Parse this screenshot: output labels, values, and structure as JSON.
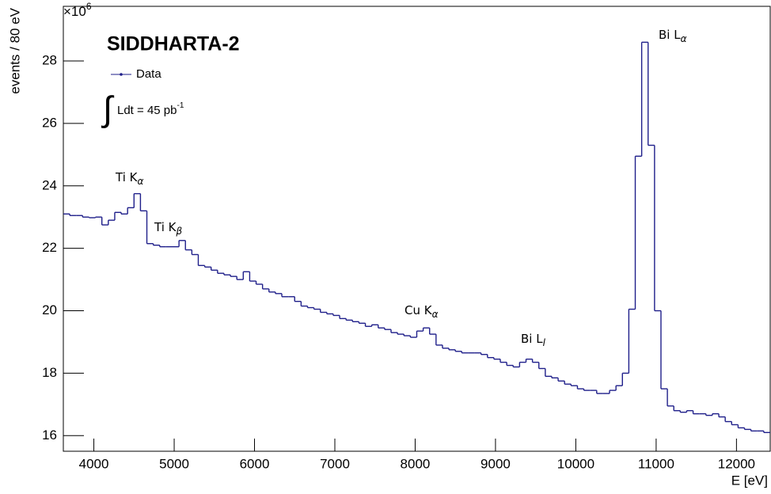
{
  "chart_data": {
    "type": "histogram",
    "title": "SIDDHARTA-2",
    "xlabel": "E [eV]",
    "ylabel": "events / 80 eV",
    "y_multiplier": {
      "text": "×10",
      "sup": "6"
    },
    "legend": {
      "entry": "Data",
      "corner": "top-left"
    },
    "luminosity": {
      "sign": "∫",
      "text": "Ldt = 45 pb",
      "sup": "-1"
    },
    "annotations": [
      {
        "text": "Ti K",
        "sub": "α"
      },
      {
        "text": "Ti K",
        "sub": "β"
      },
      {
        "text": "Cu K",
        "sub": "α"
      },
      {
        "text": "Bi L",
        "sub": "l"
      },
      {
        "text": "Bi L",
        "sub": "α"
      }
    ],
    "color": "#1f1f8a",
    "xlim": [
      3620,
      12420
    ],
    "ylim": [
      15.5,
      29.75
    ],
    "xticks": [
      4000,
      5000,
      6000,
      7000,
      8000,
      9000,
      10000,
      11000,
      12000
    ],
    "yticks": [
      16,
      18,
      20,
      22,
      24,
      26,
      28
    ],
    "bins": [
      3620,
      3700,
      3780,
      3860,
      3940,
      4020,
      4100,
      4180,
      4260,
      4340,
      4420,
      4500,
      4580,
      4660,
      4740,
      4820,
      4900,
      4980,
      5060,
      5140,
      5220,
      5300,
      5380,
      5460,
      5540,
      5620,
      5700,
      5780,
      5860,
      5940,
      6020,
      6100,
      6180,
      6260,
      6340,
      6420,
      6500,
      6580,
      6660,
      6740,
      6820,
      6900,
      6980,
      7060,
      7140,
      7220,
      7300,
      7380,
      7460,
      7540,
      7620,
      7700,
      7780,
      7860,
      7940,
      8020,
      8100,
      8180,
      8260,
      8340,
      8420,
      8500,
      8580,
      8660,
      8740,
      8820,
      8900,
      8980,
      9060,
      9140,
      9220,
      9300,
      9380,
      9460,
      9540,
      9620,
      9700,
      9780,
      9860,
      9940,
      10020,
      10100,
      10180,
      10260,
      10340,
      10420,
      10500,
      10580,
      10660,
      10740,
      10820,
      10900,
      10980,
      11060,
      11140,
      11220,
      11300,
      11380,
      11460,
      11540,
      11620,
      11700,
      11780,
      11860,
      11940,
      12020,
      12100,
      12180,
      12260,
      12340,
      12420
    ],
    "values": [
      23.1,
      23.05,
      23.05,
      23.0,
      22.98,
      23.0,
      22.75,
      22.9,
      23.15,
      23.1,
      23.3,
      23.75,
      23.2,
      22.15,
      22.1,
      22.05,
      22.05,
      22.05,
      22.25,
      21.95,
      21.8,
      21.45,
      21.4,
      21.3,
      21.2,
      21.15,
      21.1,
      21.0,
      21.25,
      20.95,
      20.85,
      20.7,
      20.6,
      20.55,
      20.45,
      20.45,
      20.3,
      20.15,
      20.1,
      20.05,
      19.95,
      19.9,
      19.85,
      19.75,
      19.7,
      19.65,
      19.6,
      19.5,
      19.55,
      19.45,
      19.4,
      19.3,
      19.25,
      19.2,
      19.15,
      19.35,
      19.45,
      19.25,
      18.9,
      18.8,
      18.75,
      18.7,
      18.65,
      18.65,
      18.65,
      18.6,
      18.5,
      18.45,
      18.35,
      18.25,
      18.2,
      18.35,
      18.45,
      18.35,
      18.15,
      17.9,
      17.85,
      17.75,
      17.65,
      17.6,
      17.5,
      17.45,
      17.45,
      17.35,
      17.35,
      17.45,
      17.6,
      18.0,
      20.05,
      24.95,
      28.6,
      25.3,
      20.0,
      17.5,
      16.95,
      16.8,
      16.75,
      16.8,
      16.7,
      16.7,
      16.65,
      16.7,
      16.6,
      16.45,
      16.35,
      16.25,
      16.2,
      16.15,
      16.15,
      16.1
    ]
  }
}
